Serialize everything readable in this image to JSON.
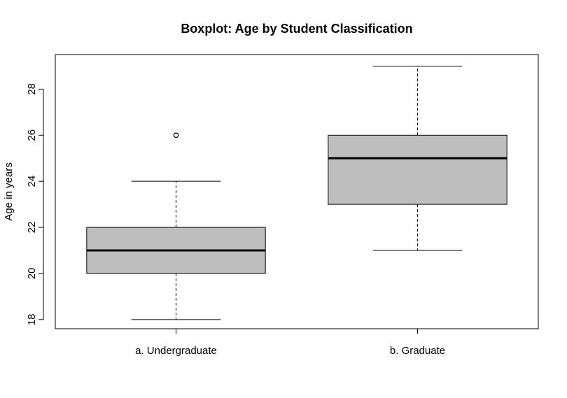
{
  "chart_data": {
    "type": "boxplot",
    "title": "Boxplot: Age by Student Classification",
    "xlabel": "",
    "ylabel": "Age in years",
    "ylim": [
      17.6,
      29.5
    ],
    "y_ticks": [
      18,
      20,
      22,
      24,
      26,
      28
    ],
    "grid": false,
    "categories": [
      "a. Undergraduate",
      "b. Graduate"
    ],
    "boxes": [
      {
        "category": "a. Undergraduate",
        "whisker_low": 18,
        "q1": 20,
        "median": 21,
        "q3": 22,
        "whisker_high": 24,
        "outliers": [
          26
        ]
      },
      {
        "category": "b. Graduate",
        "whisker_low": 21,
        "q1": 23,
        "median": 25,
        "q3": 26,
        "whisker_high": 29,
        "outliers": []
      }
    ],
    "colors": {
      "box_fill": "#bebebe",
      "stroke": "#000000"
    }
  }
}
